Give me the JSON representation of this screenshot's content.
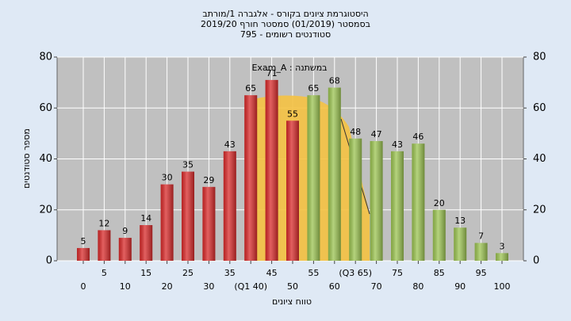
{
  "chart_data": {
    "type": "bar",
    "title_lines": [
      "היסטוגרמת ציונים בקורס - אלגברה 1/מורתב",
      "בסמסטר (01/2019) סמסטר חורף 2019/20",
      "סטודנטים רשומים - 795"
    ],
    "annotation": "במשתנה : Exam_A",
    "x_label": "טווח ציונים",
    "y_label": "מספר סטודנטים",
    "categories": [
      "0",
      "5",
      "10",
      "15",
      "20",
      "25",
      "30",
      "35",
      "(Q1 40)",
      "45",
      "50",
      "55",
      "60",
      "(Q3 65)",
      "70",
      "75",
      "80",
      "85",
      "90",
      "95",
      "100"
    ],
    "values": [
      5,
      12,
      9,
      14,
      30,
      35,
      29,
      43,
      65,
      71,
      55,
      65,
      68,
      48,
      47,
      43,
      46,
      20,
      13,
      7,
      3
    ],
    "colors": [
      "#d92b2b",
      "#d92b2b",
      "#d92b2b",
      "#d92b2b",
      "#d92b2b",
      "#d92b2b",
      "#d92b2b",
      "#d92b2b",
      "#d92b2b",
      "#d92b2b",
      "#d92b2b",
      "#9cc452",
      "#9cc452",
      "#9cc452",
      "#9cc452",
      "#9cc452",
      "#9cc452",
      "#9cc452",
      "#9cc452",
      "#9cc452",
      "#9cc452"
    ],
    "ylim": [
      0,
      80
    ],
    "yticks": [
      0,
      20,
      40,
      60,
      80
    ],
    "grid": true
  }
}
